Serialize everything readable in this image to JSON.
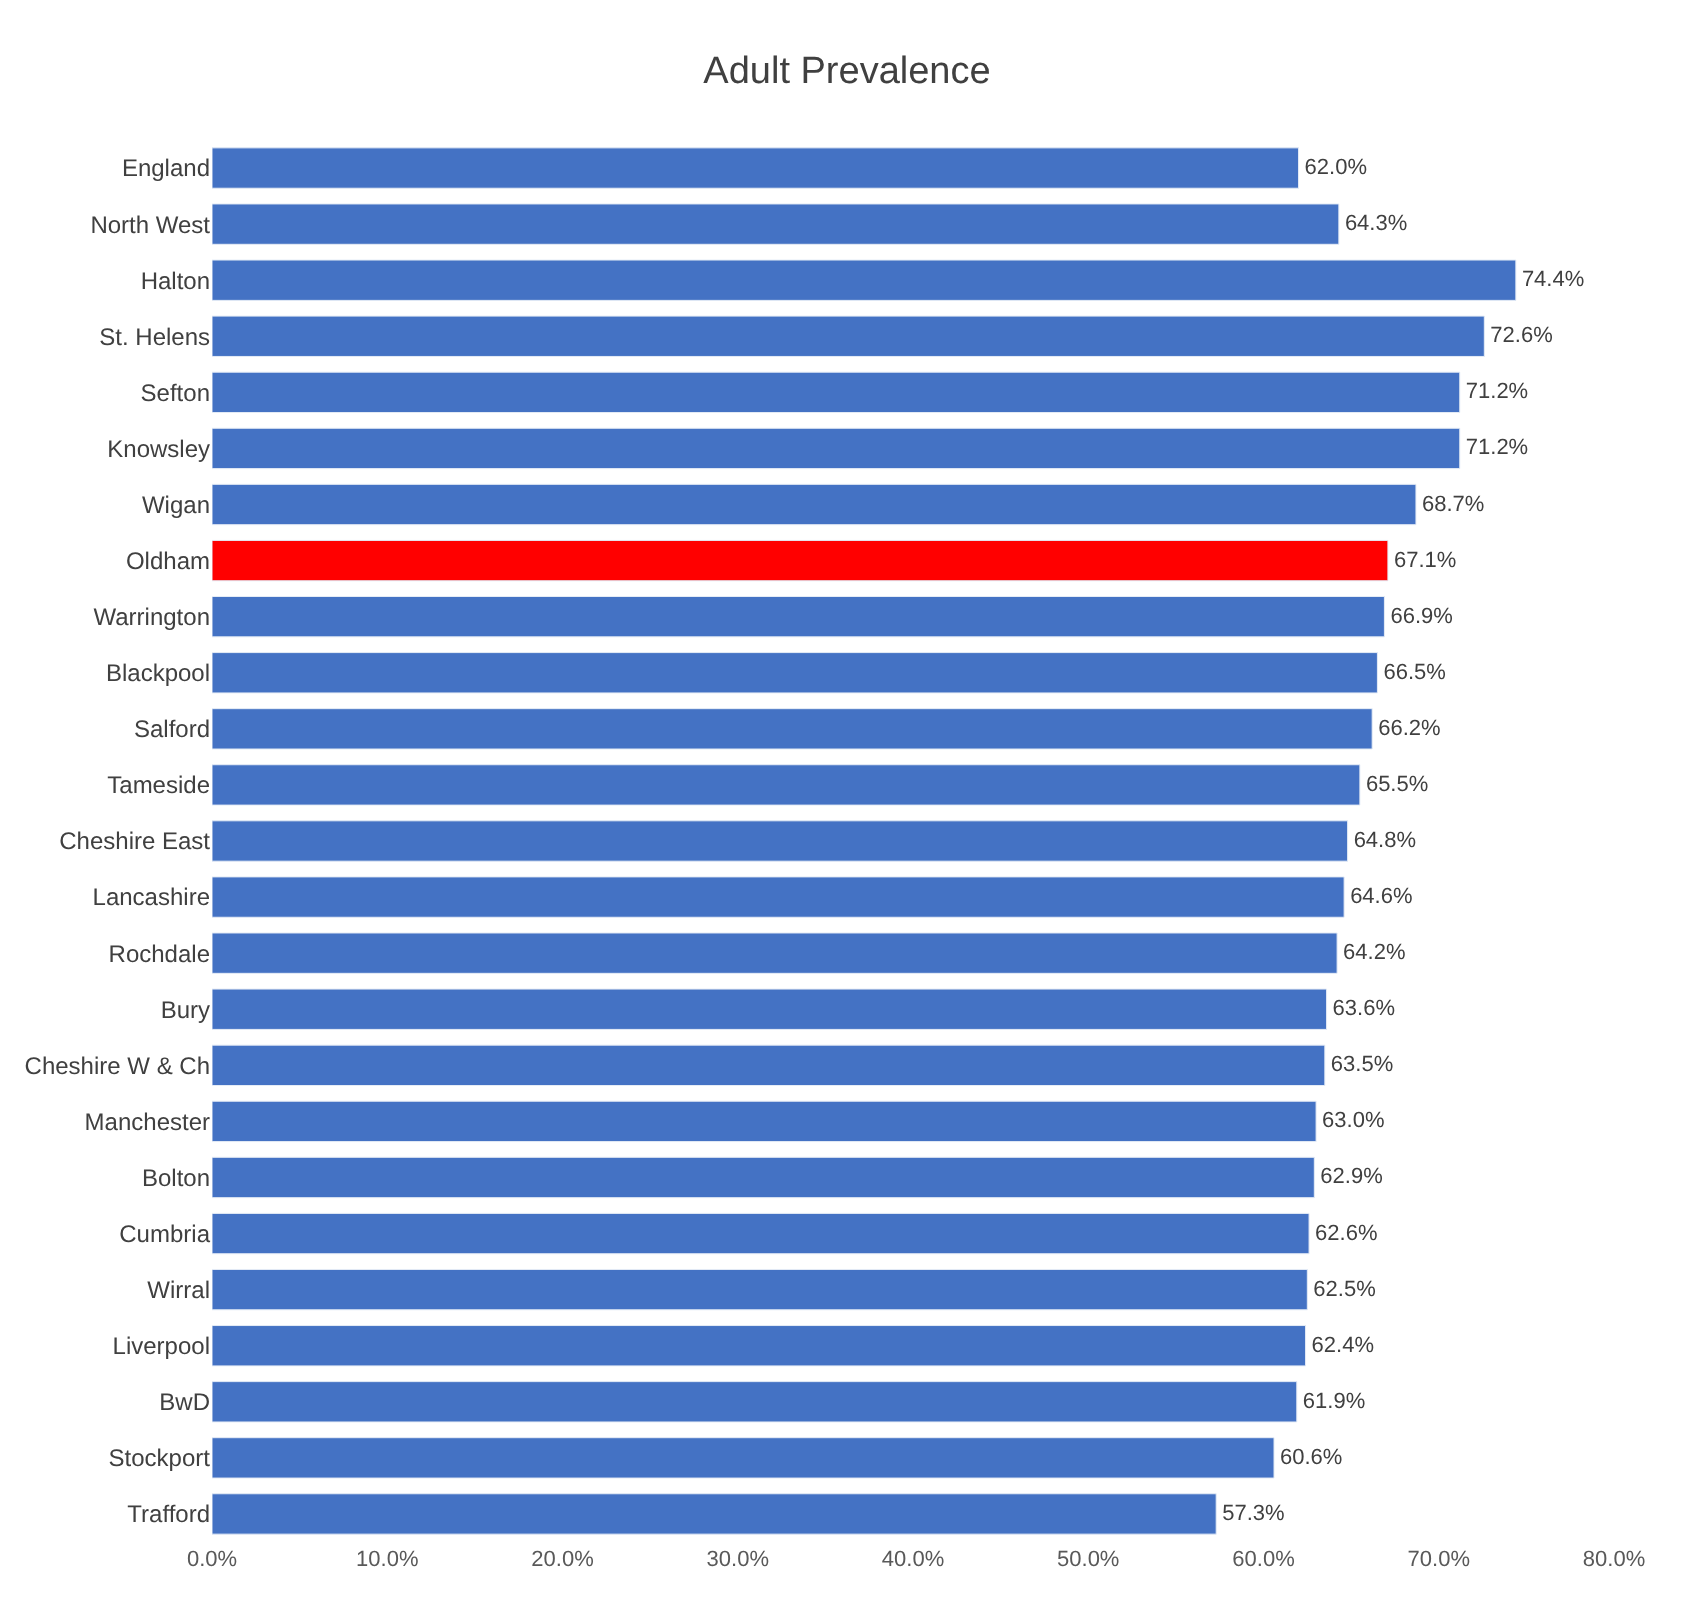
{
  "chart_data": {
    "type": "bar",
    "orientation": "horizontal",
    "title": "Adult Prevalence",
    "categories": [
      "England",
      "North West",
      "Halton",
      "St. Helens",
      "Sefton",
      "Knowsley",
      "Wigan",
      "Oldham",
      "Warrington",
      "Blackpool",
      "Salford",
      "Tameside",
      "Cheshire East",
      "Lancashire",
      "Rochdale",
      "Bury",
      "Cheshire W & Ch",
      "Manchester",
      "Bolton",
      "Cumbria",
      "Wirral",
      "Liverpool",
      "BwD",
      "Stockport",
      "Trafford"
    ],
    "values": [
      62.0,
      64.3,
      74.4,
      72.6,
      71.2,
      71.2,
      68.7,
      67.1,
      66.9,
      66.5,
      66.2,
      65.5,
      64.8,
      64.6,
      64.2,
      63.6,
      63.5,
      63.0,
      62.9,
      62.6,
      62.5,
      62.4,
      61.9,
      60.6,
      57.3
    ],
    "value_labels": [
      "62.0%",
      "64.3%",
      "74.4%",
      "72.6%",
      "71.2%",
      "71.2%",
      "68.7%",
      "67.1%",
      "66.9%",
      "66.5%",
      "66.2%",
      "65.5%",
      "64.8%",
      "64.6%",
      "64.2%",
      "63.6%",
      "63.5%",
      "63.0%",
      "62.9%",
      "62.6%",
      "62.5%",
      "62.4%",
      "61.9%",
      "60.6%",
      "57.3%"
    ],
    "colors": [
      "#4472c4",
      "#4472c4",
      "#4472c4",
      "#4472c4",
      "#4472c4",
      "#4472c4",
      "#4472c4",
      "#ff0000",
      "#4472c4",
      "#4472c4",
      "#4472c4",
      "#4472c4",
      "#4472c4",
      "#4472c4",
      "#4472c4",
      "#4472c4",
      "#4472c4",
      "#4472c4",
      "#4472c4",
      "#4472c4",
      "#4472c4",
      "#4472c4",
      "#4472c4",
      "#4472c4",
      "#4472c4"
    ],
    "xlim": [
      0,
      80
    ],
    "xticks": [
      {
        "value": 0,
        "label": "0.0%"
      },
      {
        "value": 10,
        "label": "10.0%"
      },
      {
        "value": 20,
        "label": "20.0%"
      },
      {
        "value": 30,
        "label": "30.0%"
      },
      {
        "value": 40,
        "label": "40.0%"
      },
      {
        "value": 50,
        "label": "50.0%"
      },
      {
        "value": 60,
        "label": "60.0%"
      },
      {
        "value": 70,
        "label": "70.0%"
      },
      {
        "value": 80,
        "label": "80.0%"
      }
    ],
    "grid": false
  }
}
